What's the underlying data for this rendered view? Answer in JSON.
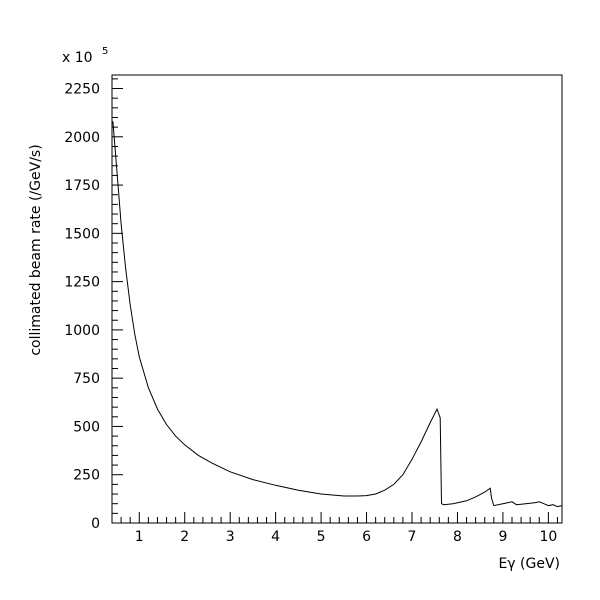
{
  "chart_data": {
    "type": "line",
    "xlabel": "Eγ (GeV)",
    "ylabel": "collimated beam rate (/GeV/s)",
    "y_multiplier": "x 10",
    "y_multiplier_exponent": "5",
    "xlim": [
      0.4,
      10.3
    ],
    "ylim": [
      0,
      2320
    ],
    "grid": false,
    "x_ticks": [
      1,
      2,
      3,
      4,
      5,
      6,
      7,
      8,
      9,
      10
    ],
    "y_ticks": [
      0,
      250,
      500,
      750,
      1000,
      1250,
      1500,
      1750,
      2000,
      2250
    ],
    "series": [
      {
        "x": [
          0.42,
          0.5,
          0.6,
          0.7,
          0.8,
          0.9,
          1.0,
          1.2,
          1.4,
          1.6,
          1.8,
          2.0,
          2.3,
          2.6,
          3.0,
          3.5,
          4.0,
          4.5,
          5.0,
          5.5,
          5.8,
          6.0,
          6.2,
          6.4,
          6.6,
          6.8,
          7.0,
          7.2,
          7.4,
          7.55,
          7.62,
          7.65,
          7.7,
          7.9,
          8.0,
          8.2,
          8.4,
          8.6,
          8.72,
          8.75,
          8.8,
          9.0,
          9.1,
          9.2,
          9.3,
          9.5,
          9.7,
          9.8,
          9.9,
          10.0,
          10.1,
          10.2,
          10.3
        ],
        "y": [
          2080,
          1850,
          1550,
          1320,
          1130,
          980,
          860,
          700,
          590,
          510,
          450,
          405,
          350,
          310,
          265,
          225,
          195,
          170,
          150,
          140,
          140,
          142,
          150,
          170,
          200,
          250,
          330,
          420,
          520,
          590,
          545,
          100,
          95,
          100,
          105,
          115,
          135,
          160,
          180,
          130,
          90,
          100,
          105,
          110,
          95,
          100,
          105,
          110,
          100,
          90,
          95,
          85,
          90
        ]
      }
    ]
  }
}
